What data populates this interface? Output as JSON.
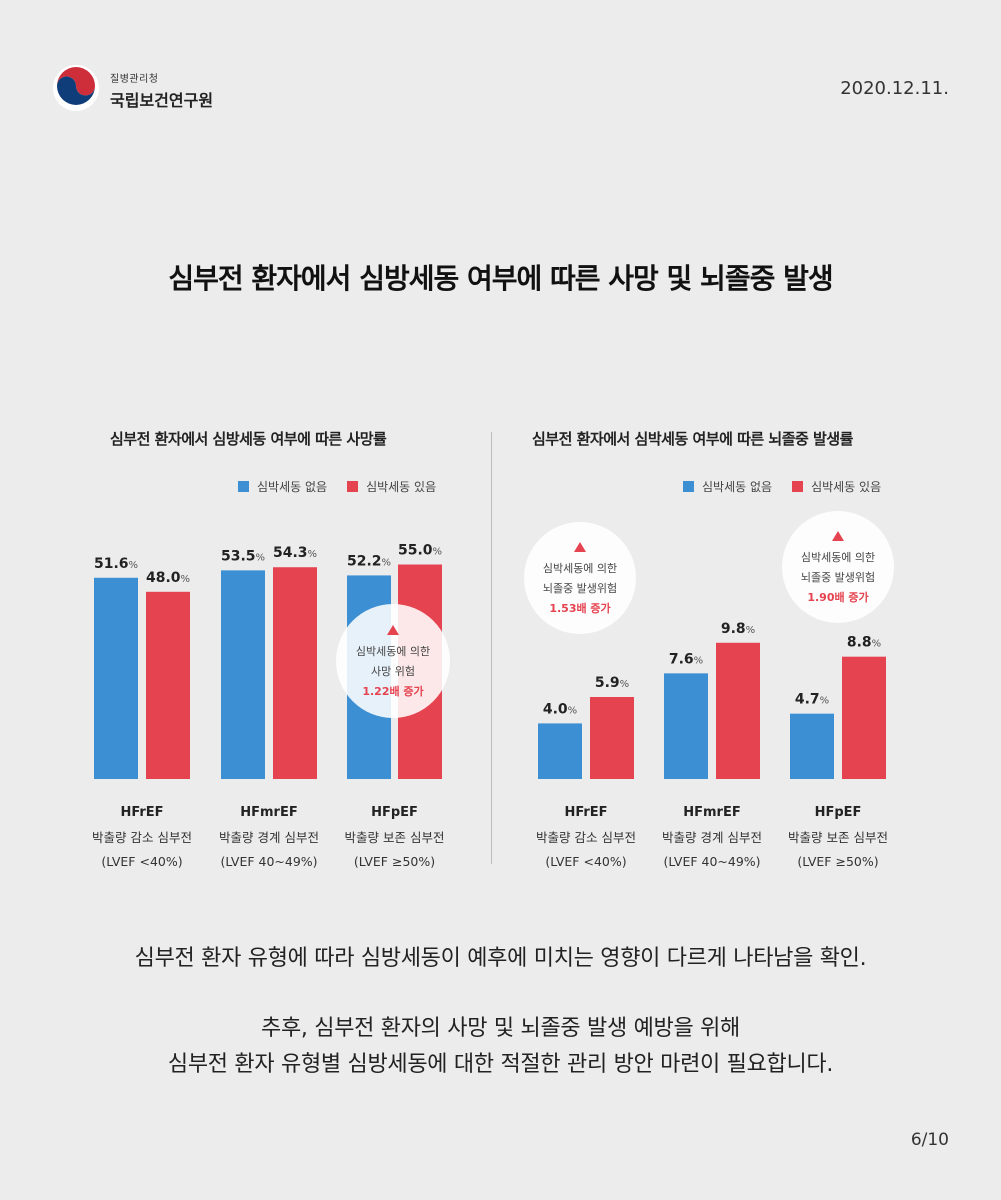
{
  "header": {
    "org_top": "질병관리청",
    "org_main": "국립보건연구원",
    "date": "2020.12.11."
  },
  "main_title": "심부전 환자에서 심방세동 여부에 따른 사망 및 뇌졸중 발생",
  "legend": {
    "no_af": "심박세동 없음",
    "af": "심박세동 있음"
  },
  "colors": {
    "no_af": "#3d8fd3",
    "af": "#e5434f",
    "accent_text": "#e5434f"
  },
  "chart_data": [
    {
      "type": "bar",
      "title": "심부전 환자에서 심방세동 여부에 따른 사망률",
      "categories": [
        "HFrEF",
        "HFmrEF",
        "HFpEF"
      ],
      "category_sublabels": [
        [
          "박출량 감소 심부전",
          "(LVEF <40%)"
        ],
        [
          "박출량 경계 심부전",
          "(LVEF 40~49%)"
        ],
        [
          "박출량 보존 심부전",
          "(LVEF  ≥50%)"
        ]
      ],
      "series": [
        {
          "name": "심박세동 없음",
          "values": [
            51.6,
            53.5,
            52.2
          ]
        },
        {
          "name": "심박세동 있음",
          "values": [
            48.0,
            54.3,
            55.0
          ]
        }
      ],
      "unit": "%",
      "ylim": [
        0,
        60
      ],
      "annotations": [
        {
          "lines": [
            "심박세동에 의한",
            "사망 위험"
          ],
          "highlight": "1.22배 증가",
          "category": "HFpEF"
        }
      ]
    },
    {
      "type": "bar",
      "title": "심부전 환자에서 심박세동 여부에 따른 뇌졸중 발생률",
      "categories": [
        "HFrEF",
        "HFmrEF",
        "HFpEF"
      ],
      "category_sublabels": [
        [
          "박출량 감소 심부전",
          "(LVEF <40%)"
        ],
        [
          "박출량 경계 심부전",
          "(LVEF 40~49%)"
        ],
        [
          "박출량 보존 심부전",
          "(LVEF  ≥50%)"
        ]
      ],
      "series": [
        {
          "name": "심박세동 없음",
          "values": [
            4.0,
            7.6,
            4.7
          ]
        },
        {
          "name": "심박세동 있음",
          "values": [
            5.9,
            9.8,
            8.8
          ]
        }
      ],
      "unit": "%",
      "ylim": [
        0,
        15
      ],
      "annotations": [
        {
          "lines": [
            "심박세동에 의한",
            "뇌졸중 발생위험"
          ],
          "highlight": "1.53배 증가",
          "category": "HFrEF"
        },
        {
          "lines": [
            "심박세동에 의한",
            "뇌졸중 발생위험"
          ],
          "highlight": "1.90배 증가",
          "category": "HFpEF"
        }
      ]
    }
  ],
  "bottom": {
    "line1": "심부전 환자 유형에 따라 심방세동이 예후에 미치는 영향이 다르게 나타남을 확인.",
    "line2": "추후, 심부전 환자의 사망 및 뇌졸중 발생 예방을 위해",
    "line3": "심부전 환자 유형별 심방세동에 대한 적절한 관리 방안 마련이 필요합니다."
  },
  "page": "6/10"
}
